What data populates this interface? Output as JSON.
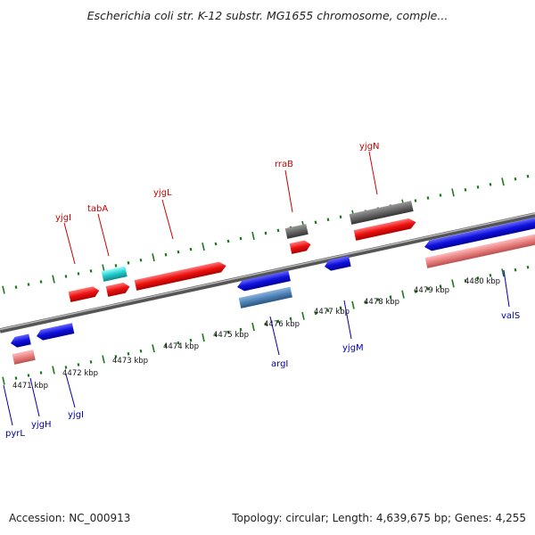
{
  "title": "Escherichia coli str. K-12 substr. MG1655 chromosome, comple...",
  "footer": {
    "accession": "Accession: NC_000913",
    "stats": "Topology: circular; Length: 4,639,675 bp; Genes: 4,255"
  },
  "colors": {
    "forward": "#ee1111",
    "reverse": "#1111dd",
    "trna_forward": "#22cccc",
    "pseudo": "#666666",
    "rrna": "#e88080",
    "steel": "#4f83b8",
    "label_forward": "#cc0000",
    "label_reverse": "#0000aa",
    "backbone": "#888888",
    "tick": "#1a7a1a"
  },
  "scale": {
    "unit": "kbp",
    "labels": [
      "4471 kbp",
      "4472 kbp",
      "4473 kbp",
      "4474 kbp",
      "4475 kbp",
      "4476 kbp",
      "4477 kbp",
      "4478 kbp",
      "4479 kbp",
      "4480 kbp"
    ]
  },
  "forward_labels": [
    "yjgI",
    "tabA",
    "yjgL",
    "rraB",
    "yjgN"
  ],
  "reverse_labels": [
    "pyrL",
    "yjgH",
    "yjgI",
    "argI",
    "yjgM",
    "valS"
  ]
}
